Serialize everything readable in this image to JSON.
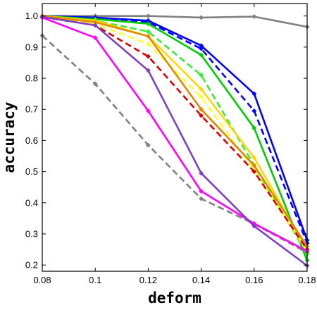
{
  "chart_data": {
    "type": "line",
    "xlabel": "deform",
    "ylabel": "accuracy",
    "xlim": [
      0.08,
      0.18
    ],
    "ylim": [
      0.18,
      1.04
    ],
    "xticks": [
      "0.08",
      "0.1",
      "0.12",
      "0.14",
      "0.16",
      "0.18"
    ],
    "yticks": [
      "0.2",
      "0.3",
      "0.4",
      "0.5",
      "0.6",
      "0.7",
      "0.8",
      "0.9",
      "1.0"
    ],
    "grid": false,
    "legend": "none",
    "x": [
      0.08,
      0.1,
      0.12,
      0.14,
      0.16,
      0.18
    ],
    "series": [
      {
        "color": "#808080",
        "dash": "solid",
        "values": [
          1.0,
          1.0,
          1.0,
          0.995,
          0.998,
          0.965
        ]
      },
      {
        "color": "#808080",
        "dash": "dashed",
        "values": [
          0.937,
          0.782,
          0.585,
          0.413,
          0.332,
          0.24
        ]
      },
      {
        "color": "#0000ff",
        "dash": "solid",
        "values": [
          1.0,
          0.995,
          0.985,
          0.905,
          0.75,
          0.28
        ]
      },
      {
        "color": "#0000ff",
        "dash": "dashed",
        "values": [
          1.0,
          0.99,
          0.98,
          0.895,
          0.695,
          0.27
        ]
      },
      {
        "color": "#00cc00",
        "dash": "solid",
        "values": [
          1.0,
          0.99,
          0.975,
          0.875,
          0.64,
          0.215
        ]
      },
      {
        "color": "#33ee33",
        "dash": "dashed",
        "values": [
          0.997,
          0.985,
          0.95,
          0.81,
          0.52,
          0.235
        ]
      },
      {
        "color": "#ffd700",
        "dash": "solid",
        "values": [
          1.0,
          0.985,
          0.935,
          0.765,
          0.545,
          0.25
        ]
      },
      {
        "color": "#ffff33",
        "dash": "dashed",
        "values": [
          0.997,
          0.975,
          0.91,
          0.74,
          0.505,
          0.245
        ]
      },
      {
        "color": "#e08a00",
        "dash": "solid",
        "values": [
          1.0,
          0.98,
          0.935,
          0.7,
          0.52,
          0.26
        ]
      },
      {
        "color": "#dd0000",
        "dash": "dashed",
        "values": [
          0.997,
          0.97,
          0.87,
          0.68,
          0.5,
          0.25
        ]
      },
      {
        "color": "#ff00ff",
        "dash": "solid",
        "values": [
          0.995,
          0.93,
          0.695,
          0.437,
          0.333,
          0.245
        ]
      },
      {
        "color": "#8040c0",
        "dash": "solid",
        "values": [
          0.997,
          0.97,
          0.825,
          0.495,
          0.325,
          0.198
        ]
      }
    ]
  }
}
